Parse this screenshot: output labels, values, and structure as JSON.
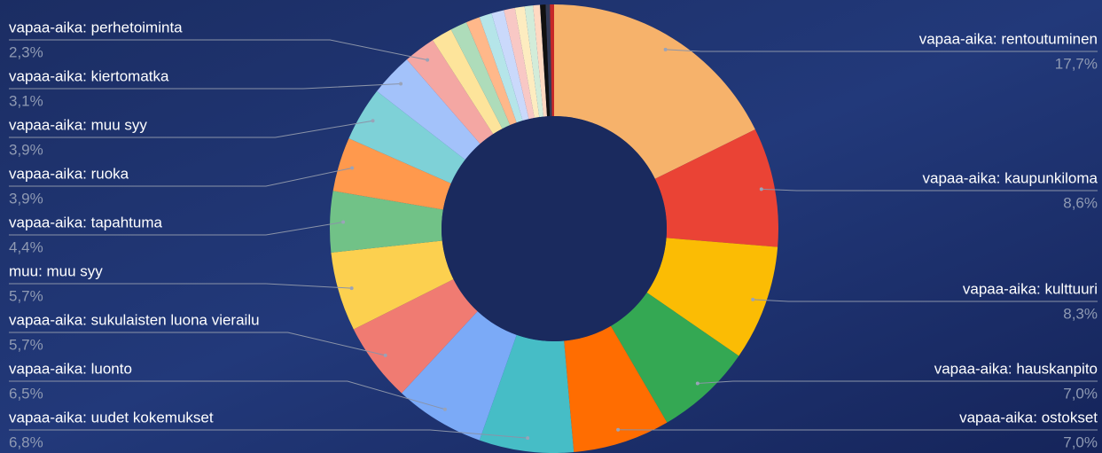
{
  "chart_data": {
    "type": "donut",
    "categories": [
      "vapaa-aika: rentoutuminen",
      "vapaa-aika: kaupunkiloma",
      "vapaa-aika: kulttuuri",
      "vapaa-aika: hauskanpito",
      "vapaa-aika: ostokset",
      "vapaa-aika: uudet kokemukset",
      "vapaa-aika: luonto",
      "vapaa-aika: sukulaisten luona vierailu",
      "muu: muu syy",
      "vapaa-aika: tapahtuma",
      "vapaa-aika: ruoka",
      "vapaa-aika: muu syy",
      "vapaa-aika: kiertomatka",
      "vapaa-aika: perhetoiminta",
      null,
      null,
      null,
      null,
      null,
      null,
      null,
      null,
      null,
      null,
      null,
      null
    ],
    "values": [
      17.7,
      8.6,
      8.3,
      7.0,
      7.0,
      6.8,
      6.5,
      5.7,
      5.7,
      4.4,
      3.9,
      3.9,
      3.1,
      2.3,
      1.5,
      1.2,
      1.0,
      0.9,
      0.9,
      0.8,
      0.7,
      0.6,
      0.5,
      0.4,
      0.3,
      0.3
    ],
    "value_labels": [
      "17,7%",
      "8,6%",
      "8,3%",
      "7,0%",
      "7,0%",
      "6,8%",
      "6,5%",
      "5,7%",
      "5,7%",
      "4,4%",
      "3,9%",
      "3,9%",
      "3,1%",
      "2,3%",
      null,
      null,
      null,
      null,
      null,
      null,
      null,
      null,
      null,
      null,
      null,
      null
    ],
    "colors": [
      "#f6b26b",
      "#ea4335",
      "#fbbc04",
      "#34a853",
      "#ff6d01",
      "#46bdc6",
      "#7baaf7",
      "#f07b72",
      "#fcd04f",
      "#71c287",
      "#ff994d",
      "#7ed1d7",
      "#a3c2fa",
      "#f4a7a3",
      "#fde49b",
      "#aedcba",
      "#ffb88a",
      "#b5e5e9",
      "#cad9fb",
      "#f8c8c5",
      "#fdecc0",
      "#d2ecd9",
      "#ffd9c2",
      "#111111",
      "#333a55",
      "#c62828"
    ]
  }
}
